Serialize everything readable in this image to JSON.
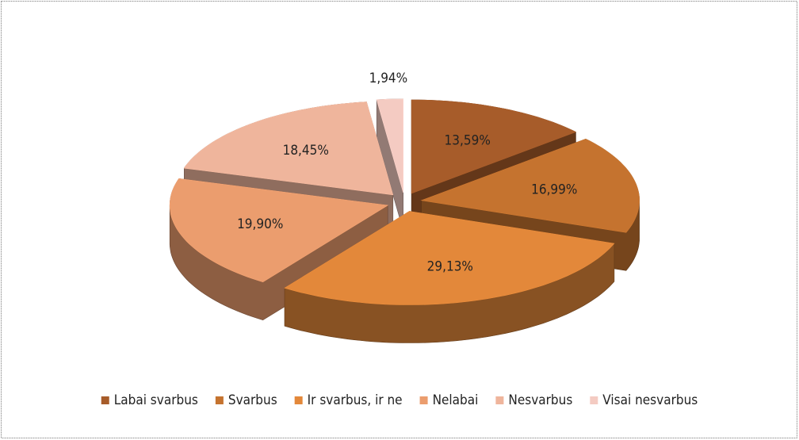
{
  "chart_data": {
    "type": "pie3d",
    "categories": [
      "Labai svarbus",
      "Svarbus",
      "Ir svarbus, ir ne",
      "Nelabai",
      "Nesvarbus",
      "Visai nesvarbus"
    ],
    "values": [
      13.59,
      16.99,
      29.13,
      19.9,
      18.45,
      1.94
    ],
    "value_labels": [
      "13,59%",
      "16,99%",
      "29,13%",
      "19,90%",
      "18,45%",
      "1,94%"
    ],
    "colors": [
      "#a75c2a",
      "#c5732f",
      "#e3883a",
      "#eb9d6e",
      "#efb59c",
      "#f4cbc2"
    ],
    "legend": "bottom"
  }
}
